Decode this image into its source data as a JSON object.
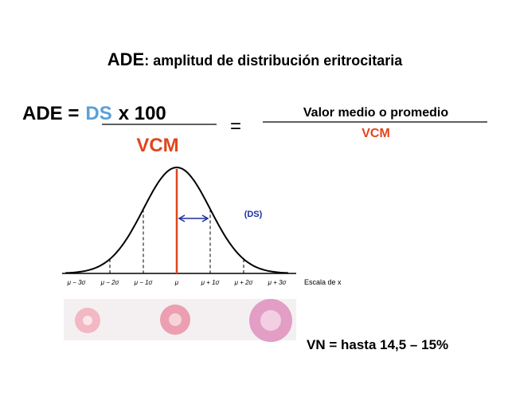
{
  "title": {
    "term": "ADE",
    "rest": ": amplitud de distribución eritrocitaria"
  },
  "formula": {
    "left": "ADE =",
    "ds": "DS",
    "times": "x 100",
    "denominator": "VCM",
    "equals": "=",
    "right_numerator": "Valor medio o promedio",
    "right_denominator": "VCM"
  },
  "figure": {
    "ds_label": "(DS)",
    "axis_labels": [
      "μ − 3σ",
      "μ − 2σ",
      "μ − 1σ",
      "μ",
      "μ + 1σ",
      "μ + 2σ",
      "μ + 3σ"
    ],
    "axis_title": "Escala de x"
  },
  "note": "VN = hasta 14,5 – 15%"
}
